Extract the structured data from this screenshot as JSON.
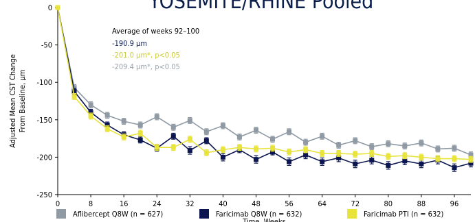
{
  "chart_data": {
    "type": "line",
    "title": "YOSEMITE/RHINE Pooled",
    "xlabel": "Time, Weeks",
    "ylabel": [
      "Adjusted Mean CST Change",
      "From Baseline, µm"
    ],
    "xlim": [
      0,
      100
    ],
    "ylim": [
      -250,
      0
    ],
    "xticks": [
      0,
      8,
      16,
      24,
      32,
      40,
      48,
      56,
      64,
      72,
      80,
      88,
      96
    ],
    "yticks": [
      0,
      -50,
      -100,
      -150,
      -200,
      -250
    ],
    "annotation": {
      "header": "Average of weeks 92–100",
      "lines": [
        {
          "text": "-190.9 µm",
          "color": "#0b1f5c"
        },
        {
          "text": "-201.0 µm*, p<0.05",
          "color": "#c9c93a"
        },
        {
          "text": "-209.4 µm*, p<0.05",
          "color": "#9aa3ad"
        }
      ]
    },
    "x": [
      0,
      4,
      8,
      12,
      16,
      20,
      24,
      28,
      32,
      36,
      40,
      44,
      48,
      52,
      56,
      60,
      64,
      68,
      72,
      76,
      80,
      84,
      88,
      92,
      96,
      100
    ],
    "series": [
      {
        "name": "Aflibercept Q8W (n = 627)",
        "color": "#8f9aa5",
        "values": [
          0,
          -107,
          -130,
          -144,
          -152,
          -157,
          -146,
          -160,
          -151,
          -166,
          -158,
          -173,
          -164,
          -176,
          -166,
          -180,
          -172,
          -184,
          -178,
          -186,
          -182,
          -185,
          -181,
          -189,
          -188,
          -197
        ],
        "err": [
          2,
          4,
          4,
          4,
          4,
          4,
          4,
          4,
          4,
          4,
          4,
          4,
          4,
          4,
          4,
          4,
          4,
          4,
          4,
          4,
          4,
          4,
          4,
          4,
          4,
          4
        ]
      },
      {
        "name": "Faricimab Q8W (n = 632)",
        "color": "#0b1550",
        "values": [
          0,
          -112,
          -140,
          -157,
          -170,
          -177,
          -188,
          -172,
          -191,
          -178,
          -200,
          -190,
          -203,
          -193,
          -206,
          -197,
          -206,
          -201,
          -209,
          -204,
          -211,
          -205,
          -209,
          -204,
          -214,
          -208
        ],
        "err": [
          2,
          4,
          4,
          4,
          4,
          4,
          4,
          4,
          5,
          4,
          5,
          4,
          5,
          4,
          5,
          5,
          5,
          5,
          5,
          5,
          5,
          5,
          5,
          5,
          5,
          5
        ]
      },
      {
        "name": "Faricimab PTI (n = 632)",
        "color": "#e8e43c",
        "values": [
          0,
          -119,
          -145,
          -162,
          -173,
          -168,
          -187,
          -187,
          -176,
          -194,
          -190,
          -187,
          -189,
          -188,
          -193,
          -190,
          -195,
          -195,
          -196,
          -195,
          -199,
          -198,
          -200,
          -202,
          -202,
          -203
        ],
        "err": [
          2,
          4,
          4,
          4,
          4,
          4,
          4,
          4,
          4,
          4,
          4,
          4,
          4,
          4,
          4,
          4,
          4,
          4,
          4,
          4,
          4,
          4,
          4,
          4,
          4,
          4
        ]
      }
    ],
    "legend_position": "bottom"
  }
}
